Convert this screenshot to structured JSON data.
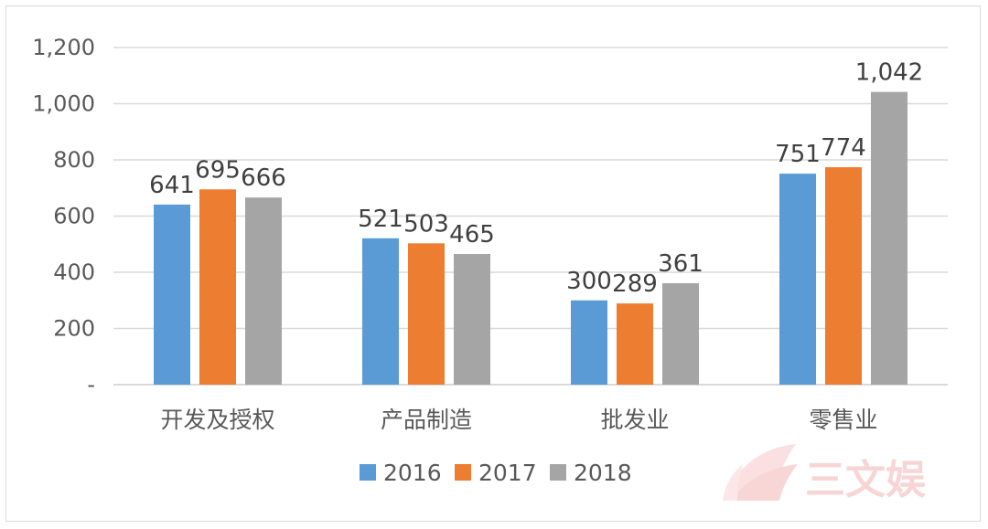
{
  "chart_data": {
    "type": "bar",
    "categories": [
      "开发及授权",
      "产品制造",
      "批发业",
      "零售业"
    ],
    "series": [
      {
        "name": "2016",
        "values": [
          641,
          521,
          300,
          751
        ],
        "color": "#5b9bd5"
      },
      {
        "name": "2017",
        "values": [
          695,
          503,
          289,
          774
        ],
        "color": "#ed7d31"
      },
      {
        "name": "2018",
        "values": [
          666,
          465,
          361,
          1042
        ],
        "color": "#a5a5a5"
      }
    ],
    "data_labels": [
      [
        "641",
        "521",
        "300",
        "751"
      ],
      [
        "695",
        "503",
        "289",
        "774"
      ],
      [
        "666",
        "465",
        "361",
        "1,042"
      ]
    ],
    "y_ticks": [
      {
        "value": 0,
        "label": "-"
      },
      {
        "value": 200,
        "label": "200"
      },
      {
        "value": 400,
        "label": "400"
      },
      {
        "value": 600,
        "label": "600"
      },
      {
        "value": 800,
        "label": "800"
      },
      {
        "value": 1000,
        "label": "1,000"
      },
      {
        "value": 1200,
        "label": "1,200"
      }
    ],
    "ylim": [
      0,
      1200
    ],
    "grid": true,
    "legend_position": "bottom"
  },
  "watermark": {
    "text": "三文娱",
    "icon": "fan-logo-icon",
    "color": "#f6c8c8"
  }
}
